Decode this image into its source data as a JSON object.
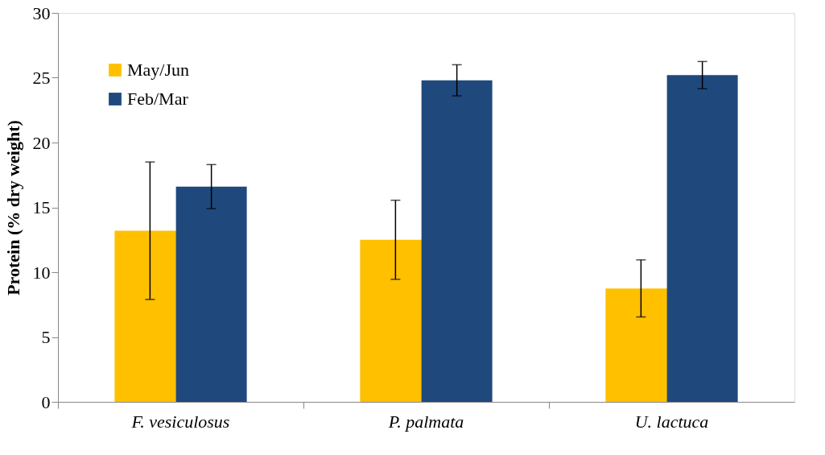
{
  "chart_data": {
    "type": "bar",
    "ylabel": "Protein (% dry weight)",
    "categories": [
      "F. vesiculosus",
      "P. palmata",
      "U. lactuca"
    ],
    "series": [
      {
        "name": "May/Jun",
        "color": "#ffc000",
        "values": [
          13.2,
          12.5,
          8.75
        ],
        "errors": [
          5.3,
          3.05,
          2.2
        ]
      },
      {
        "name": "Feb/Mar",
        "color": "#1f497d",
        "values": [
          16.6,
          24.8,
          25.2
        ],
        "errors": [
          1.7,
          1.2,
          1.05
        ]
      }
    ],
    "ylim": [
      0,
      30
    ],
    "yticks": [
      0,
      5,
      10,
      15,
      20,
      25,
      30
    ],
    "grid": false,
    "legend": "top left"
  }
}
